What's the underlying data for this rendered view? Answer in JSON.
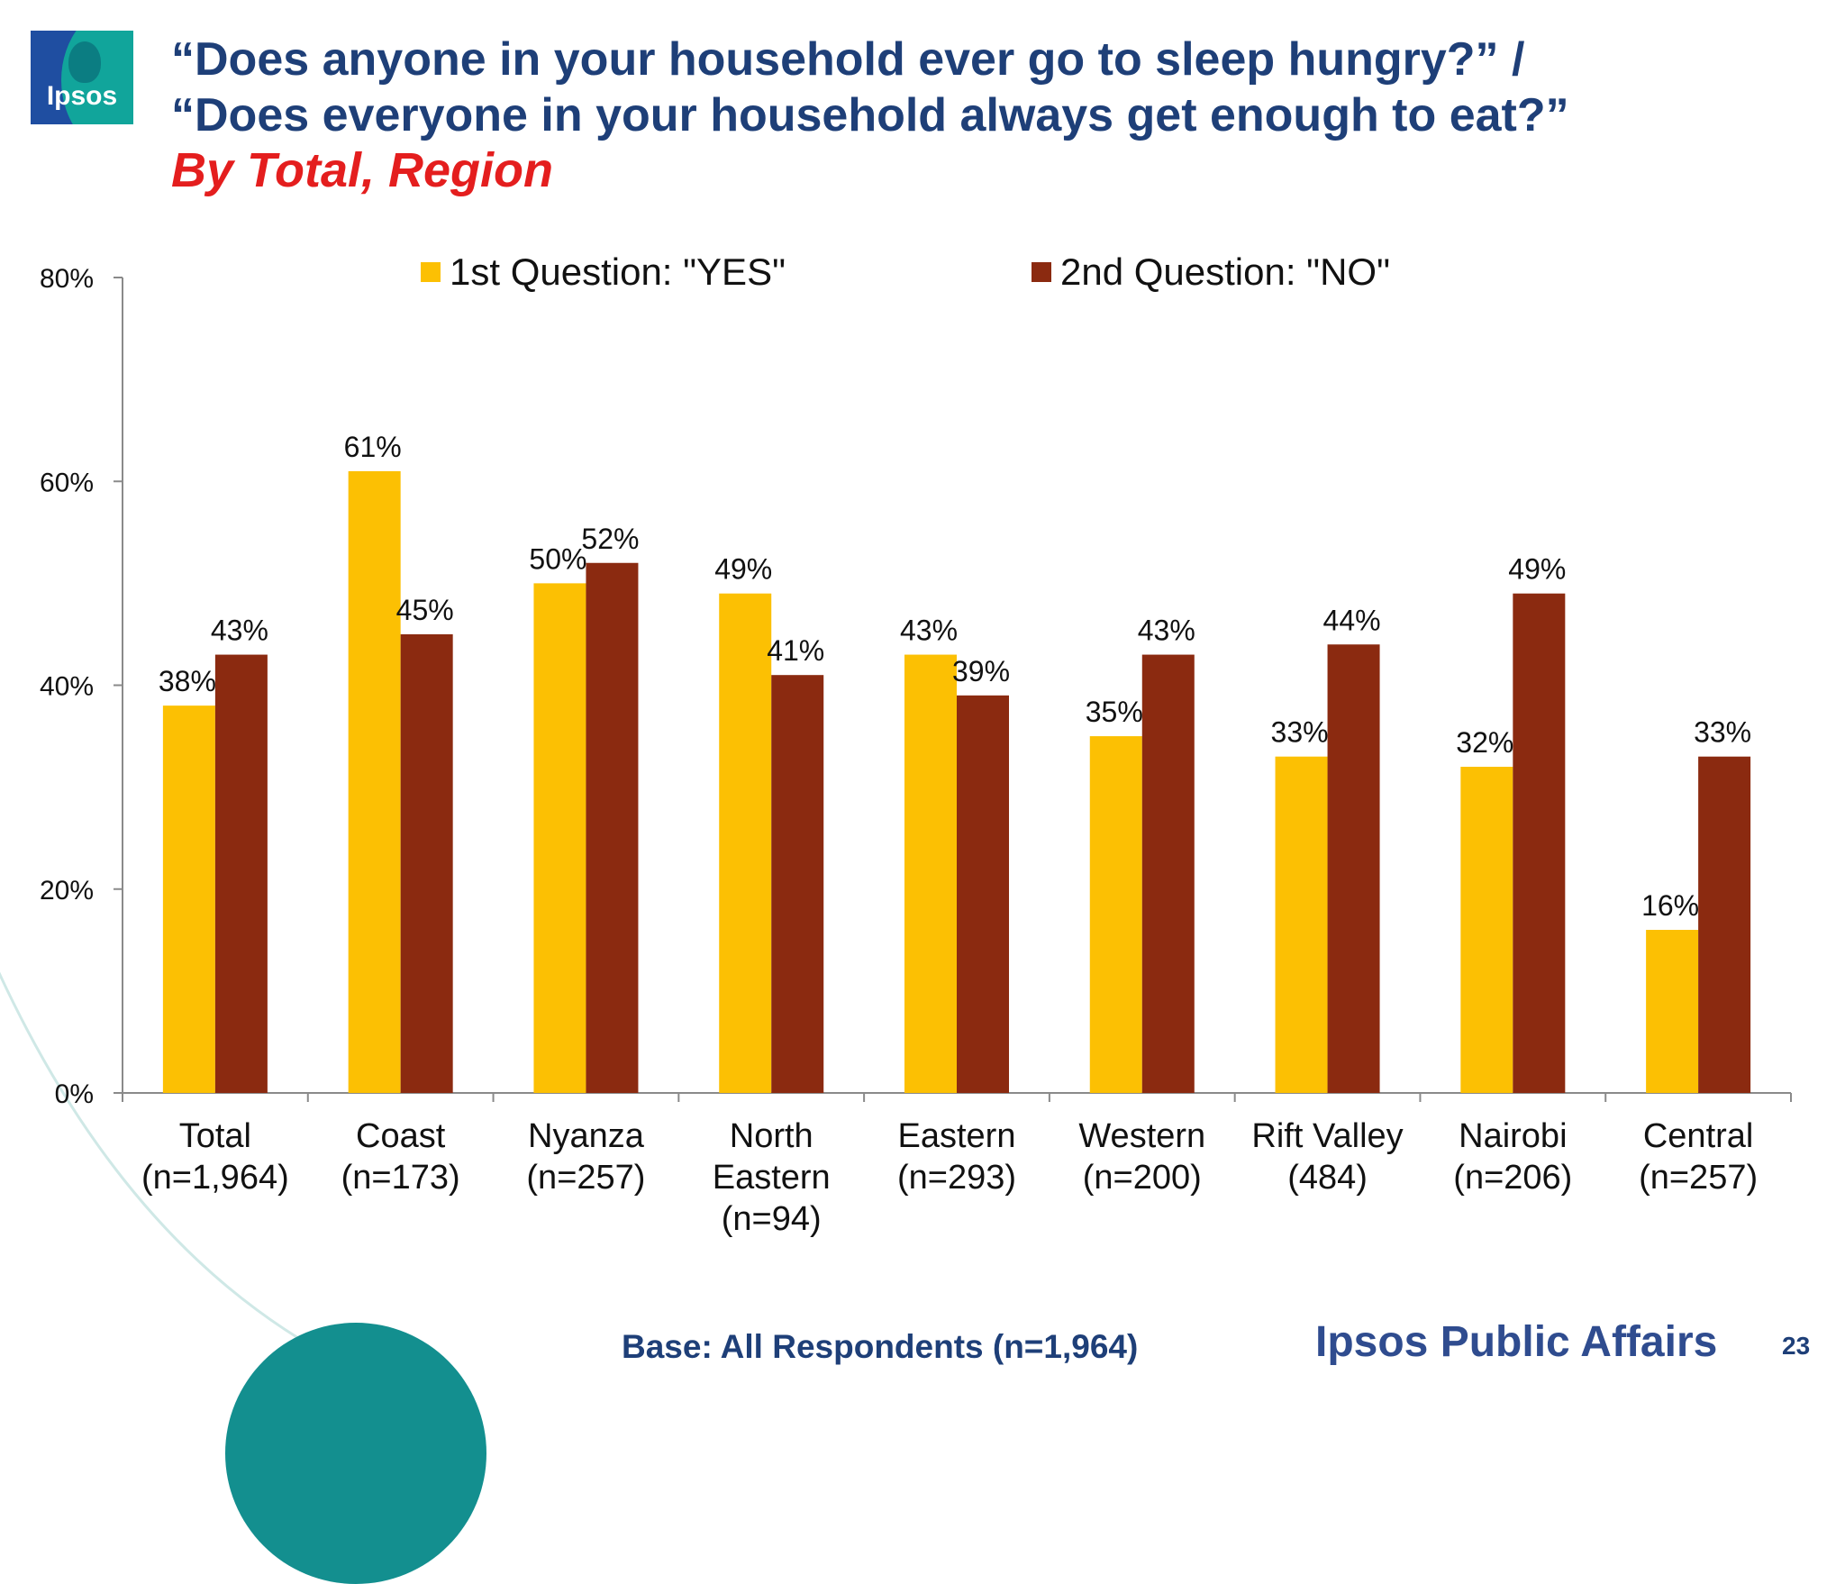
{
  "logo": {
    "text": "Ipsos"
  },
  "title": {
    "line1": "“Does anyone in your household ever go to sleep hungry?”  /",
    "line2": "“Does everyone in your household always get enough to eat?”",
    "subtitle": "By Total, Region"
  },
  "colors": {
    "yes": "#fcc003",
    "no": "#8b2a10",
    "title": "#1e3f78",
    "subtitle": "#e41e1e",
    "deco": "#138f8f"
  },
  "chart_data": {
    "type": "bar",
    "categories": [
      [
        "Total",
        "(n=1,964)"
      ],
      [
        "Coast",
        "(n=173)"
      ],
      [
        "Nyanza",
        "(n=257)"
      ],
      [
        "North",
        "Eastern",
        "(n=94)"
      ],
      [
        "Eastern",
        "(n=293)"
      ],
      [
        "Western",
        "(n=200)"
      ],
      [
        "Rift Valley",
        "(484)"
      ],
      [
        "Nairobi",
        "(n=206)"
      ],
      [
        "Central",
        "(n=257)"
      ]
    ],
    "series": [
      {
        "name": "1st Question: \"YES\"",
        "values": [
          38,
          61,
          50,
          49,
          43,
          35,
          33,
          32,
          16
        ]
      },
      {
        "name": "2nd Question: \"NO\"",
        "values": [
          43,
          45,
          52,
          41,
          39,
          43,
          44,
          49,
          33
        ]
      }
    ],
    "data_labels": [
      [
        "38%",
        "61%",
        "50%",
        "49%",
        "43%",
        "35%",
        "33%",
        "32%",
        "16%"
      ],
      [
        "43%",
        "45%",
        "52%",
        "41%",
        "39%",
        "43%",
        "44%",
        "49%",
        "33%"
      ]
    ],
    "yticks": [
      "0%",
      "20%",
      "40%",
      "60%",
      "80%"
    ],
    "ylim": [
      0,
      80
    ],
    "legend": "top",
    "grid": false
  },
  "footer": {
    "base": "Base: All Respondents (n=1,964)",
    "brand": "Ipsos Public Affairs",
    "page": "23"
  }
}
